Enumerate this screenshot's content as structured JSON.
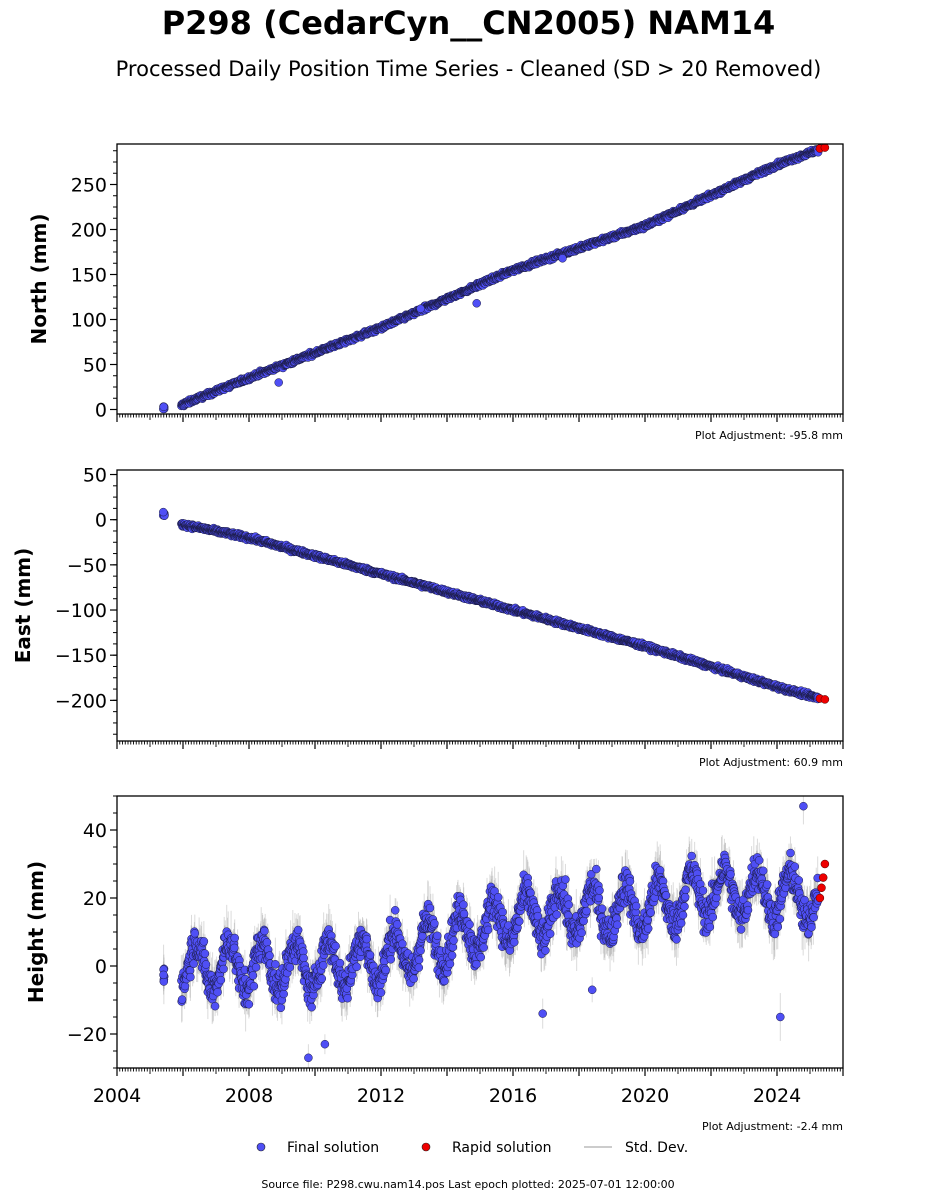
{
  "header": {
    "title": "P298 (CedarCyn__CN2005) NAM14",
    "subtitle": "Processed Daily Position Time Series - Cleaned (SD > 20 Removed)"
  },
  "colors": {
    "final": "#4f4ff5",
    "rapid": "#ee0000",
    "stddev": "#999999"
  },
  "chart_data": [
    {
      "type": "scatter",
      "ylabel": "North (mm)",
      "xlim": [
        2004.0,
        2026.0
      ],
      "ylim": [
        -5,
        295
      ],
      "y_ticks": [
        0,
        50,
        100,
        150,
        200,
        250
      ],
      "y_tick_labels": [
        "0",
        "50",
        "100",
        "150",
        "200",
        "250"
      ],
      "annotation": "Plot Adjustment: -95.8 mm",
      "series": [
        {
          "kind": "final",
          "model": "linear",
          "x": [
            2005.4,
            2005.95,
            2008.0,
            2012.0,
            2016.0,
            2020.0,
            2024.0,
            2025.2
          ],
          "y": [
            1,
            5,
            35,
            91,
            155,
            204,
            272,
            288
          ]
        },
        {
          "kind": "rapid",
          "x": [
            2025.3,
            2025.45
          ],
          "y": [
            290,
            291
          ]
        }
      ],
      "outliers": [
        {
          "x": 2014.9,
          "y": 118
        },
        {
          "x": 2008.9,
          "y": 30
        },
        {
          "x": 2013.2,
          "y": 112
        },
        {
          "x": 2017.5,
          "y": 168
        }
      ]
    },
    {
      "type": "scatter",
      "ylabel": "East (mm)",
      "xlim": [
        2004.0,
        2026.0
      ],
      "ylim": [
        -245,
        55
      ],
      "y_ticks": [
        -200,
        -150,
        -100,
        -50,
        0,
        50
      ],
      "y_tick_labels": [
        "−200",
        "−150",
        "−100",
        "−50",
        "0",
        "50"
      ],
      "annotation": "Plot Adjustment: 60.9 mm",
      "series": [
        {
          "kind": "final",
          "model": "linear",
          "x": [
            2005.4,
            2005.95,
            2008.0,
            2012.0,
            2016.0,
            2020.0,
            2024.0,
            2025.2
          ],
          "y": [
            5,
            -5,
            -20,
            -60,
            -100,
            -140,
            -185,
            -197
          ]
        },
        {
          "kind": "rapid",
          "x": [
            2025.3,
            2025.45
          ],
          "y": [
            -198,
            -199
          ]
        }
      ]
    },
    {
      "type": "scatter",
      "ylabel": "Height (mm)",
      "xlim": [
        2004.0,
        2026.0
      ],
      "ylim": [
        -30,
        50
      ],
      "y_ticks": [
        -20,
        0,
        20,
        40
      ],
      "y_tick_labels": [
        "−20",
        "0",
        "20",
        "40"
      ],
      "x_ticks": [
        2004,
        2008,
        2012,
        2016,
        2020,
        2024
      ],
      "x_tick_labels": [
        "2004",
        "2008",
        "2012",
        "2016",
        "2020",
        "2024"
      ],
      "annotation": "Plot Adjustment: -2.4 mm",
      "series": [
        {
          "kind": "final",
          "model": "seasonal",
          "x": [
            2005.95,
            2010.0,
            2012.0,
            2014.0,
            2016.0,
            2018.0,
            2020.0,
            2022.0,
            2024.0,
            2025.2
          ],
          "y": [
            0,
            0,
            2,
            8,
            14,
            16,
            17,
            22,
            21,
            20
          ]
        },
        {
          "kind": "rapid",
          "x": [
            2025.3,
            2025.35,
            2025.4,
            2025.45
          ],
          "y": [
            20,
            23,
            26,
            30
          ]
        }
      ],
      "outliers": [
        {
          "x": 2024.1,
          "y": -15
        },
        {
          "x": 2009.8,
          "y": -27
        },
        {
          "x": 2010.3,
          "y": -23
        },
        {
          "x": 2016.9,
          "y": -14
        },
        {
          "x": 2018.4,
          "y": -7
        },
        {
          "x": 2024.8,
          "y": 47
        }
      ]
    }
  ],
  "legend": {
    "final_label": "Final solution",
    "rapid_label": "Rapid solution",
    "stddev_label": "Std. Dev."
  },
  "footer": {
    "source": "Source file: P298.cwu.nam14.pos  Last epoch plotted: 2025-07-01 12:00:00"
  }
}
